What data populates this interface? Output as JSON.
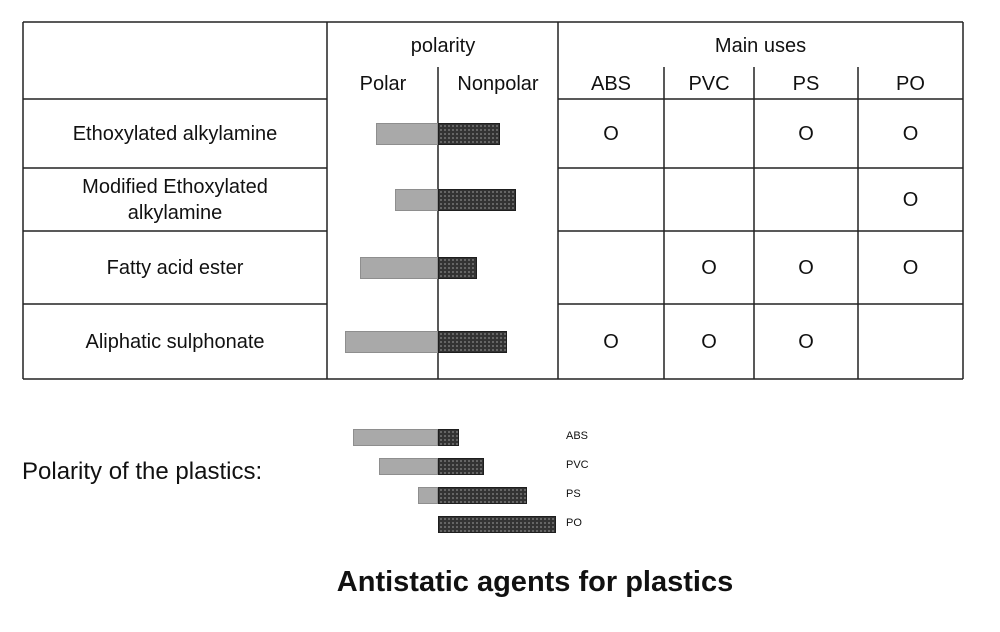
{
  "table": {
    "polarity_header": "polarity",
    "polar_label": "Polar",
    "nonpolar_label": "Nonpolar",
    "uses_header": "Main uses",
    "use_columns": [
      "ABS",
      "PVC",
      "PS",
      "PO"
    ],
    "rows": [
      {
        "name": "Ethoxylated alkylamine",
        "polar": 0.62,
        "nonpolar": 0.62,
        "uses": [
          "O",
          "",
          "O",
          "O"
        ]
      },
      {
        "name": "Modified Ethoxylated alkylamine",
        "polar": 0.43,
        "nonpolar": 0.78,
        "uses": [
          "",
          "",
          "",
          "O"
        ]
      },
      {
        "name": "Fatty acid ester",
        "polar": 0.78,
        "nonpolar": 0.39,
        "uses": [
          "",
          "O",
          "O",
          "O"
        ]
      },
      {
        "name": "Aliphatic sulphonate",
        "polar": 0.93,
        "nonpolar": 0.69,
        "uses": [
          "O",
          "O",
          "O",
          ""
        ]
      }
    ]
  },
  "plastics_polarity": {
    "label": "Polarity of the plastics:",
    "items": [
      {
        "name": "ABS",
        "polar": 0.85,
        "nonpolar": 0.21
      },
      {
        "name": "PVC",
        "polar": 0.59,
        "nonpolar": 0.46
      },
      {
        "name": "PS",
        "polar": 0.2,
        "nonpolar": 0.89
      },
      {
        "name": "PO",
        "polar": 0.0,
        "nonpolar": 1.18
      }
    ]
  },
  "caption": "Antistatic agents for plastics",
  "colors": {
    "polar_bar": "#a9a9a9",
    "nonpolar_bar": "#333333",
    "grid": "#222222"
  }
}
